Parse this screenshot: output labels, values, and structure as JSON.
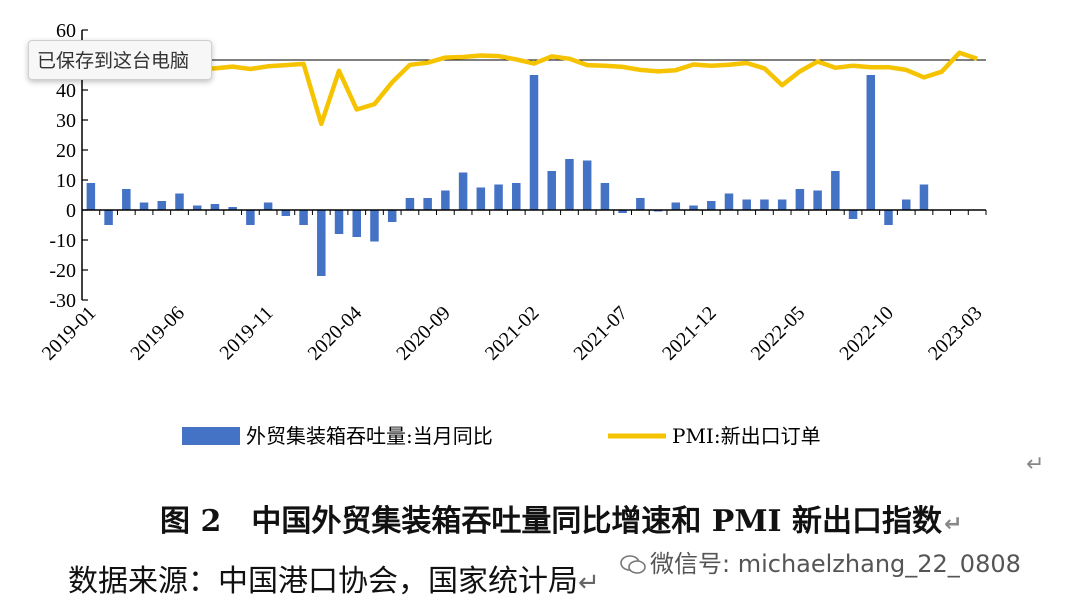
{
  "chart_data": {
    "type": "bar+line",
    "title": "",
    "xlabel": "",
    "ylabel": "",
    "ylim": [
      -30,
      60
    ],
    "yticks": [
      -30,
      -20,
      -10,
      0,
      10,
      20,
      30,
      40,
      50,
      60
    ],
    "categories": [
      "2019-01",
      "2019-02",
      "2019-03",
      "2019-04",
      "2019-05",
      "2019-06",
      "2019-07",
      "2019-08",
      "2019-09",
      "2019-10",
      "2019-11",
      "2019-12",
      "2020-01",
      "2020-02",
      "2020-03",
      "2020-04",
      "2020-05",
      "2020-06",
      "2020-07",
      "2020-08",
      "2020-09",
      "2020-10",
      "2020-11",
      "2020-12",
      "2021-01",
      "2021-02",
      "2021-03",
      "2021-04",
      "2021-05",
      "2021-06",
      "2021-07",
      "2021-08",
      "2021-09",
      "2021-10",
      "2021-11",
      "2021-12",
      "2022-01",
      "2022-02",
      "2022-03",
      "2022-04",
      "2022-05",
      "2022-06",
      "2022-07",
      "2022-08",
      "2022-09",
      "2022-10",
      "2022-11",
      "2022-12",
      "2023-01",
      "2023-02",
      "2023-03"
    ],
    "xtick_labels": [
      "2019-01",
      "2019-06",
      "2019-11",
      "2020-04",
      "2020-09",
      "2021-02",
      "2021-07",
      "2021-12",
      "2022-05",
      "2022-10",
      "2023-03"
    ],
    "series": [
      {
        "name": "外贸集装箱吞吐量:当月同比",
        "kind": "bar",
        "color": "#4472c4",
        "values": [
          9,
          -5,
          7,
          2.5,
          3,
          5.5,
          1.5,
          2,
          1,
          -5,
          2.5,
          -2,
          -5,
          -22,
          -8,
          -9,
          -10.5,
          -4,
          4,
          4,
          6.5,
          12.5,
          7.5,
          8.5,
          9,
          45,
          13,
          17,
          16.5,
          9,
          -1,
          4,
          -0.5,
          2.5,
          1.5,
          3,
          5.5,
          3.5,
          3.5,
          3.5,
          7,
          6.5,
          13,
          -3,
          45,
          -5,
          3.5,
          8.5,
          null,
          null,
          null
        ]
      },
      {
        "name": "PMI:新出口订单",
        "kind": "line",
        "color": "#f5c300",
        "values": [
          46.9,
          45.2,
          47.1,
          47.7,
          46.5,
          46.3,
          46.9,
          47.2,
          47.8,
          47.0,
          47.9,
          48.3,
          48.7,
          28.7,
          46.4,
          33.5,
          35.3,
          42.6,
          48.4,
          49.1,
          50.8,
          51.0,
          51.5,
          51.3,
          50.2,
          48.8,
          51.2,
          50.4,
          48.3,
          48.1,
          47.7,
          46.7,
          46.2,
          46.6,
          48.5,
          48.1,
          48.4,
          49.0,
          47.2,
          41.6,
          46.2,
          49.5,
          47.4,
          48.1,
          47.6,
          47.6,
          46.7,
          44.2,
          46.1,
          52.4,
          50.4
        ]
      }
    ],
    "hline": 50,
    "legend": {
      "placement": "bottom",
      "bar_label": "外贸集装箱吞吐量:当月同比",
      "line_label": "PMI:新出口订单"
    }
  },
  "overlay": {
    "tooltip": "已保存到这台电脑"
  },
  "caption": "图 2　中国外贸集装箱吞吐量同比增速和 PMI 新出口指数",
  "source": "数据来源：中国港口协会，国家统计局",
  "watermark": {
    "text": "微信号: michaelzhang_22_0808",
    "icon": "wechat-icon"
  },
  "return_mark": "↵"
}
